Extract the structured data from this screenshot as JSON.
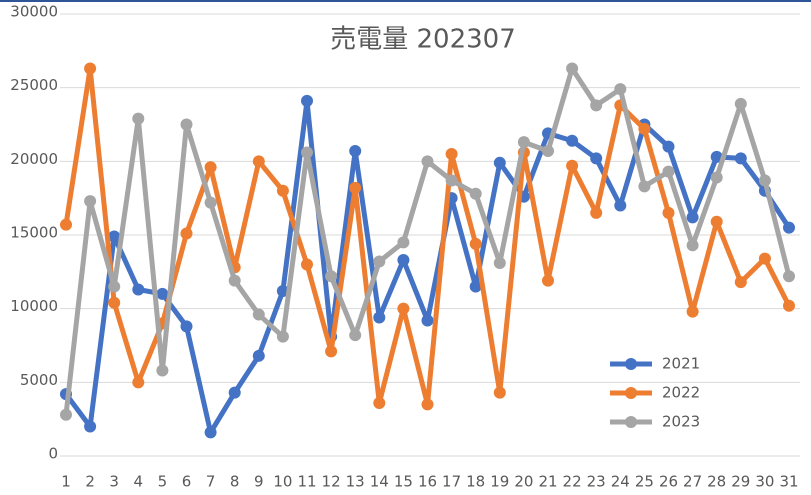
{
  "chart_data": {
    "type": "line",
    "title": "売電量 202307",
    "categories": [
      "1",
      "2",
      "3",
      "4",
      "5",
      "6",
      "7",
      "8",
      "9",
      "10",
      "11",
      "12",
      "13",
      "14",
      "15",
      "16",
      "17",
      "18",
      "19",
      "20",
      "21",
      "22",
      "23",
      "24",
      "25",
      "26",
      "27",
      "28",
      "29",
      "30",
      "31"
    ],
    "series": [
      {
        "name": "2021",
        "color": "#4472c4",
        "values": [
          4200,
          2000,
          14900,
          11300,
          11000,
          8800,
          1600,
          4300,
          6800,
          11200,
          24100,
          8100,
          20700,
          9400,
          13300,
          9200,
          17500,
          11500,
          19900,
          17600,
          21900,
          21400,
          20200,
          17000,
          22500,
          21000,
          16200,
          20300,
          20200,
          18000,
          15500
        ]
      },
      {
        "name": "2022",
        "color": "#ed7d31",
        "values": [
          15700,
          26300,
          10400,
          5000,
          9000,
          15100,
          19600,
          12800,
          20000,
          18000,
          13000,
          7100,
          18200,
          3600,
          10000,
          3500,
          20500,
          14400,
          4300,
          20600,
          11900,
          19700,
          16500,
          23800,
          22200,
          16500,
          9800,
          15900,
          11800,
          13400,
          10200
        ]
      },
      {
        "name": "2023",
        "color": "#a5a5a5",
        "values": [
          2800,
          17300,
          11500,
          22900,
          5800,
          22500,
          17200,
          11900,
          9600,
          8100,
          20600,
          12200,
          8200,
          13200,
          14500,
          20000,
          18700,
          17800,
          13100,
          21300,
          20700,
          26300,
          23800,
          24900,
          18300,
          19300,
          14300,
          18900,
          23900,
          18700,
          12200
        ]
      }
    ],
    "ylim": [
      0,
      30000
    ],
    "yticks": [
      0,
      5000,
      10000,
      15000,
      20000,
      25000,
      30000
    ],
    "grid": true,
    "legend": "lower-right"
  }
}
